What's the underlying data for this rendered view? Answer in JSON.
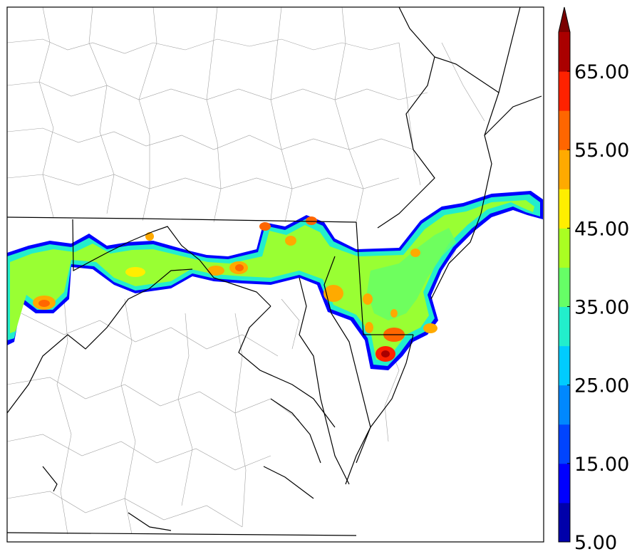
{
  "colorbar": {
    "extend": "max",
    "levels": [
      5,
      10,
      15,
      20,
      25,
      30,
      35,
      40,
      45,
      50,
      55,
      60,
      65,
      70
    ],
    "colors": [
      "#0000aa",
      "#0000ff",
      "#0044ff",
      "#0088ff",
      "#00ccff",
      "#22eecc",
      "#66ff66",
      "#aaff22",
      "#ffee00",
      "#ffaa00",
      "#ff6600",
      "#ff2200",
      "#aa0000"
    ],
    "extend_color": "#7a0000",
    "tick_labels": [
      {
        "value": 5,
        "label": "5.00"
      },
      {
        "value": 15,
        "label": "15.00"
      },
      {
        "value": 25,
        "label": "25.00"
      },
      {
        "value": 35,
        "label": "35.00"
      },
      {
        "value": 45,
        "label": "45.00"
      },
      {
        "value": 55,
        "label": "55.00"
      },
      {
        "value": 65,
        "label": "65.00"
      }
    ]
  },
  "map": {
    "background": "#ffffff",
    "state_border_color": "#000000",
    "county_border_color": "#9a9a9a"
  }
}
